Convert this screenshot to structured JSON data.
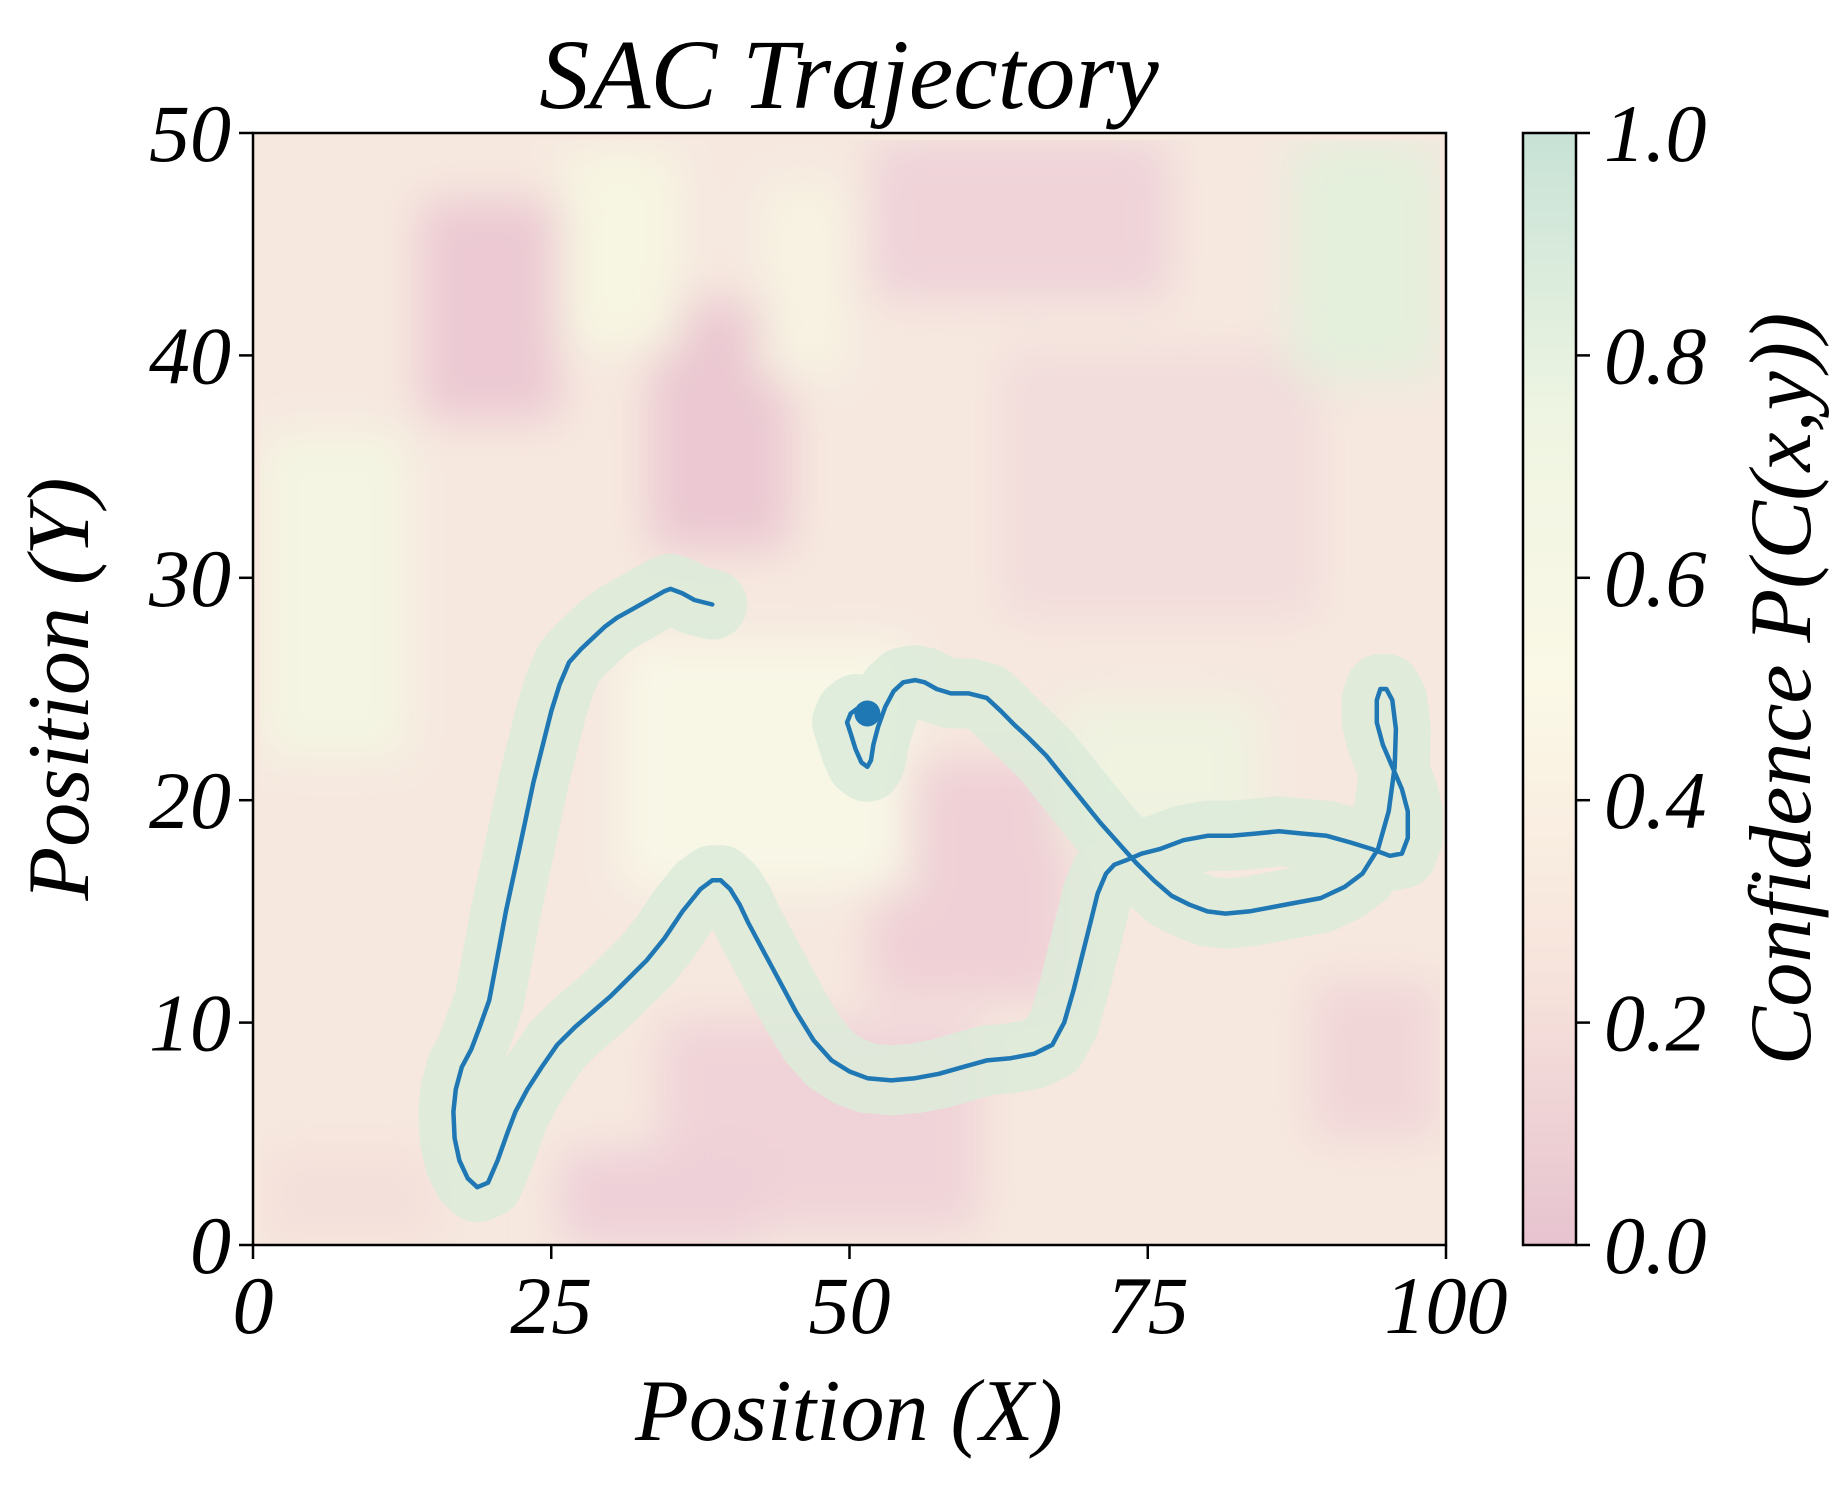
{
  "chart_data": {
    "type": "line",
    "title": "SAC Trajectory",
    "xlabel": "Position (X)",
    "ylabel": "Position (Y)",
    "xlim": [
      0,
      100
    ],
    "ylim": [
      0,
      50
    ],
    "xticks": [
      0,
      25,
      50,
      75,
      100
    ],
    "xtick_labels": [
      "0",
      "25",
      "50",
      "75",
      "100"
    ],
    "yticks": [
      0,
      10,
      20,
      30,
      40,
      50
    ],
    "ytick_labels": [
      "0",
      "10",
      "20",
      "30",
      "40",
      "50"
    ],
    "grid": false,
    "background": {
      "type": "heatmap",
      "colormap_low": "#e7c3cf",
      "colormap_mid": "#fbf8e6",
      "colormap_high": "#c7e2d6",
      "colorbar": {
        "label": "Confidence P(C(x,y))",
        "range": [
          0.0,
          1.0
        ],
        "ticks": [
          0.0,
          0.2,
          0.4,
          0.6,
          0.8,
          1.0
        ],
        "tick_labels": [
          "0.0",
          "0.2",
          "0.4",
          "0.6",
          "0.8",
          "1.0"
        ]
      }
    },
    "series": [
      {
        "color": "#1f77b4",
        "start_marker": [
          51.5,
          23.9
        ],
        "x": [
          38.5,
          37,
          36,
          35,
          34.5,
          33.5,
          32.5,
          31.5,
          30.5,
          29.5,
          28.5,
          27.5,
          26.5,
          25.7,
          25.0,
          24.3,
          23.5,
          22.8,
          22.0,
          21.2,
          20.5,
          19.8,
          19.0,
          18.3,
          17.5,
          17.0,
          16.8,
          16.9,
          17.3,
          18.0,
          18.8,
          19.7,
          20.5,
          21.3,
          22.0,
          23.0,
          24.2,
          25.5,
          27.0,
          28.5,
          30.0,
          31.5,
          33.0,
          34.5,
          36.0,
          37.5,
          38.5,
          39.2,
          40.0,
          40.8,
          41.5,
          42.5,
          44.0,
          45.5,
          47.0,
          48.5,
          50.0,
          51.5,
          53.5,
          55.5,
          57.5,
          59.5,
          61.5,
          63.5,
          65.5,
          67.0,
          68.0,
          68.8,
          69.5,
          70.2,
          70.8,
          71.5,
          72.2,
          73.2,
          74.5,
          76.0,
          78.0,
          80.0,
          82.0,
          84.0,
          86.0,
          88.0,
          90.0,
          92.0,
          93.8,
          95.3,
          96.3,
          96.8,
          96.8,
          96.3,
          95.5,
          94.7,
          94.2,
          94.2,
          94.5,
          95.0,
          95.5,
          95.8,
          95.7,
          95.2,
          94.3,
          93.0,
          91.5,
          89.5,
          87.5,
          85.5,
          83.5,
          81.5,
          80.0,
          78.5,
          77.0,
          75.5,
          74.0,
          72.5,
          71.0,
          69.5,
          68.0,
          66.5,
          65.0,
          63.8,
          62.7,
          61.5,
          60.0,
          58.5,
          57.3,
          56.3,
          55.5,
          54.5,
          53.7,
          53.0,
          52.4,
          52.0,
          51.8,
          51.5,
          51.0,
          50.5,
          50.1,
          49.8,
          50.1,
          50.6,
          51.0
        ],
        "y": [
          28.8,
          29.0,
          29.3,
          29.5,
          29.4,
          29.1,
          28.8,
          28.5,
          28.2,
          27.8,
          27.3,
          26.8,
          26.2,
          25.2,
          24.0,
          22.5,
          20.8,
          19.0,
          17.0,
          15.0,
          13.0,
          11.0,
          9.8,
          8.8,
          8.0,
          7.0,
          6.0,
          4.8,
          3.8,
          3.0,
          2.6,
          2.8,
          3.8,
          5.0,
          6.0,
          7.0,
          8.0,
          9.0,
          9.8,
          10.5,
          11.2,
          12.0,
          12.8,
          13.8,
          15.0,
          16.0,
          16.4,
          16.4,
          16.0,
          15.3,
          14.5,
          13.5,
          12.0,
          10.5,
          9.2,
          8.3,
          7.8,
          7.5,
          7.4,
          7.5,
          7.7,
          8.0,
          8.3,
          8.4,
          8.6,
          9.0,
          10.0,
          11.5,
          13.0,
          14.5,
          15.8,
          16.7,
          17.1,
          17.3,
          17.6,
          17.8,
          18.2,
          18.4,
          18.4,
          18.5,
          18.6,
          18.5,
          18.4,
          18.1,
          17.8,
          17.5,
          17.6,
          18.3,
          19.5,
          20.5,
          21.5,
          22.5,
          23.5,
          24.5,
          25.0,
          25.0,
          24.5,
          23.2,
          21.5,
          19.5,
          17.8,
          16.7,
          16.1,
          15.6,
          15.4,
          15.2,
          15.0,
          14.9,
          15.0,
          15.3,
          15.7,
          16.4,
          17.2,
          18.1,
          19.0,
          20.0,
          21.0,
          22.0,
          22.8,
          23.4,
          24.0,
          24.6,
          24.8,
          24.8,
          25.0,
          25.3,
          25.4,
          25.3,
          24.9,
          24.2,
          23.3,
          22.5,
          21.8,
          21.5,
          21.7,
          22.3,
          23.0,
          23.5,
          23.9,
          24.1,
          23.9
        ]
      }
    ]
  }
}
